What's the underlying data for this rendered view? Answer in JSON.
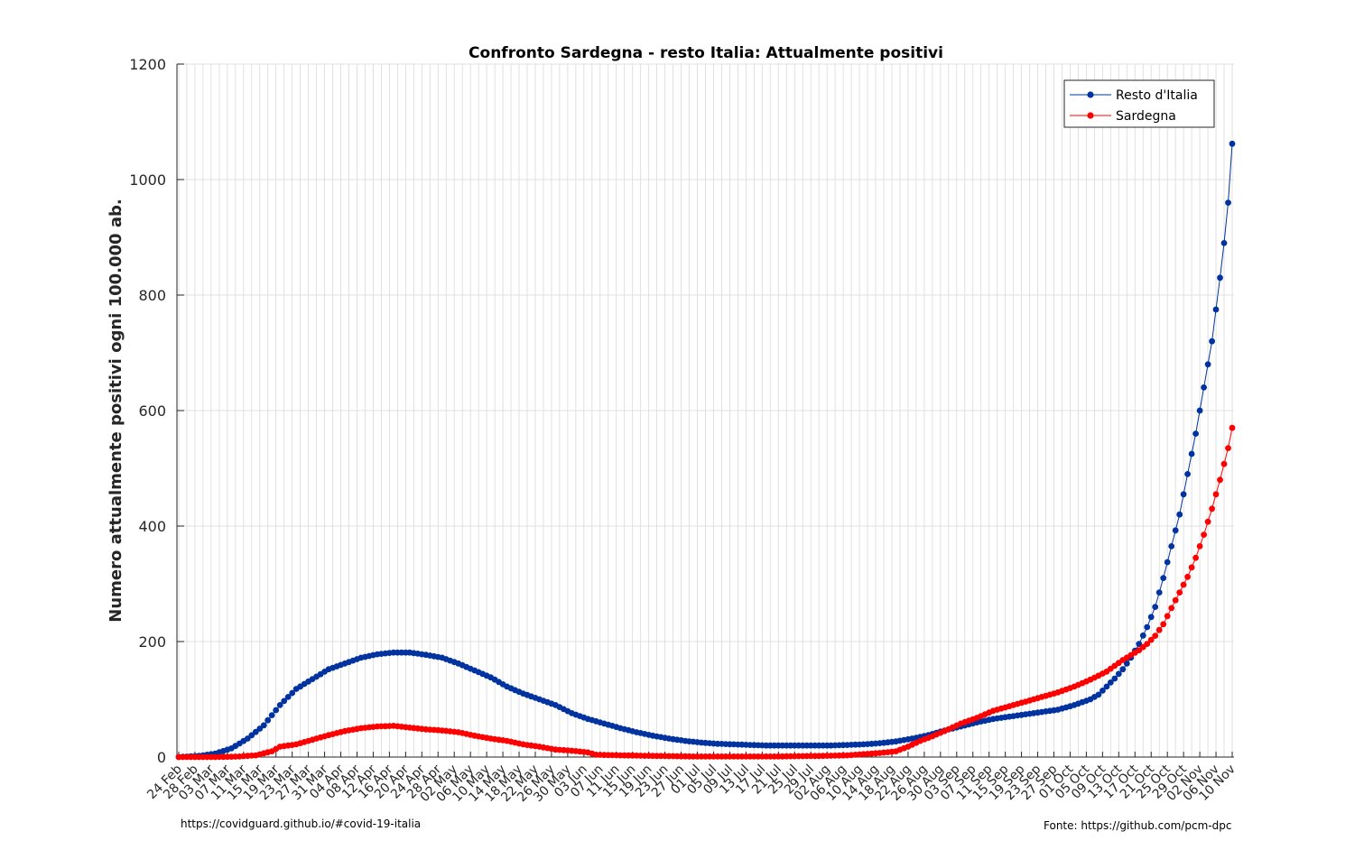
{
  "chart_data": {
    "type": "line",
    "title": "Confronto Sardegna - resto Italia: Attualmente positivi",
    "xlabel": "",
    "ylabel": "Numero attualmente positivi ogni 100.000 ab.",
    "ylim": [
      0,
      1200
    ],
    "yticks": [
      0,
      200,
      400,
      600,
      800,
      1000,
      1200
    ],
    "grid": true,
    "legend_position": "top-right",
    "x_start": "2020-02-24",
    "x_end": "2020-11-10",
    "xtick_labels": [
      "24 Feb",
      "28 Feb",
      "03 Mar",
      "07 Mar",
      "11 Mar",
      "15 Mar",
      "19 Mar",
      "23 Mar",
      "27 Mar",
      "31 Mar",
      "04 Apr",
      "08 Apr",
      "12 Apr",
      "16 Apr",
      "20 Apr",
      "24 Apr",
      "28 Apr",
      "02 May",
      "06 May",
      "10 May",
      "14 May",
      "18 May",
      "22 May",
      "26 May",
      "30 May",
      "03 Jun",
      "07 Jun",
      "11 Jun",
      "15 Jun",
      "19 Jun",
      "23 Jun",
      "27 Jun",
      "01 Jul",
      "05 Jul",
      "09 Jul",
      "13 Jul",
      "17 Jul",
      "21 Jul",
      "25 Jul",
      "29 Jul",
      "02 Aug",
      "06 Aug",
      "10 Aug",
      "14 Aug",
      "18 Aug",
      "22 Aug",
      "26 Aug",
      "30 Aug",
      "03 Sep",
      "07 Sep",
      "11 Sep",
      "15 Sep",
      "19 Sep",
      "23 Sep",
      "27 Sep",
      "01 Oct",
      "05 Oct",
      "09 Oct",
      "13 Oct",
      "17 Oct",
      "21 Oct",
      "25 Oct",
      "29 Oct",
      "02 Nov",
      "06 Nov",
      "10 Nov"
    ],
    "series": [
      {
        "name": "Resto d'Italia",
        "color": "#0033a0",
        "anchors": [
          [
            "2020-02-24",
            0
          ],
          [
            "2020-02-29",
            2
          ],
          [
            "2020-03-04",
            6
          ],
          [
            "2020-03-08",
            15
          ],
          [
            "2020-03-12",
            32
          ],
          [
            "2020-03-16",
            55
          ],
          [
            "2020-03-20",
            90
          ],
          [
            "2020-03-24",
            118
          ],
          [
            "2020-03-28",
            135
          ],
          [
            "2020-04-01",
            152
          ],
          [
            "2020-04-05",
            162
          ],
          [
            "2020-04-09",
            172
          ],
          [
            "2020-04-13",
            178
          ],
          [
            "2020-04-17",
            181
          ],
          [
            "2020-04-21",
            181
          ],
          [
            "2020-04-25",
            177
          ],
          [
            "2020-04-29",
            172
          ],
          [
            "2020-05-03",
            162
          ],
          [
            "2020-05-07",
            150
          ],
          [
            "2020-05-11",
            138
          ],
          [
            "2020-05-15",
            122
          ],
          [
            "2020-05-19",
            110
          ],
          [
            "2020-05-23",
            100
          ],
          [
            "2020-05-27",
            90
          ],
          [
            "2020-05-31",
            76
          ],
          [
            "2020-06-04",
            66
          ],
          [
            "2020-06-08",
            58
          ],
          [
            "2020-06-12",
            50
          ],
          [
            "2020-06-16",
            43
          ],
          [
            "2020-06-20",
            37
          ],
          [
            "2020-06-24",
            32
          ],
          [
            "2020-06-28",
            28
          ],
          [
            "2020-07-02",
            25
          ],
          [
            "2020-07-06",
            23
          ],
          [
            "2020-07-10",
            22
          ],
          [
            "2020-07-14",
            21
          ],
          [
            "2020-07-18",
            20
          ],
          [
            "2020-07-22",
            20
          ],
          [
            "2020-07-26",
            20
          ],
          [
            "2020-07-30",
            20
          ],
          [
            "2020-08-03",
            20
          ],
          [
            "2020-08-07",
            21
          ],
          [
            "2020-08-11",
            22
          ],
          [
            "2020-08-15",
            24
          ],
          [
            "2020-08-19",
            27
          ],
          [
            "2020-08-23",
            32
          ],
          [
            "2020-08-27",
            38
          ],
          [
            "2020-08-31",
            46
          ],
          [
            "2020-09-04",
            53
          ],
          [
            "2020-09-08",
            60
          ],
          [
            "2020-09-12",
            66
          ],
          [
            "2020-09-16",
            70
          ],
          [
            "2020-09-20",
            74
          ],
          [
            "2020-09-24",
            78
          ],
          [
            "2020-09-28",
            82
          ],
          [
            "2020-10-02",
            90
          ],
          [
            "2020-10-06",
            100
          ],
          [
            "2020-10-08",
            108
          ],
          [
            "2020-10-10",
            122
          ],
          [
            "2020-10-12",
            136
          ],
          [
            "2020-10-14",
            152
          ],
          [
            "2020-10-16",
            172
          ],
          [
            "2020-10-18",
            196
          ],
          [
            "2020-10-20",
            225
          ],
          [
            "2020-10-22",
            260
          ],
          [
            "2020-10-24",
            310
          ],
          [
            "2020-10-26",
            365
          ],
          [
            "2020-10-28",
            420
          ],
          [
            "2020-10-30",
            490
          ],
          [
            "2020-11-01",
            560
          ],
          [
            "2020-11-03",
            640
          ],
          [
            "2020-11-05",
            720
          ],
          [
            "2020-11-07",
            830
          ],
          [
            "2020-11-08",
            890
          ],
          [
            "2020-11-09",
            960
          ],
          [
            "2020-11-10",
            1062
          ]
        ]
      },
      {
        "name": "Sardegna",
        "color": "#ff0000",
        "anchors": [
          [
            "2020-02-24",
            0
          ],
          [
            "2020-03-04",
            0
          ],
          [
            "2020-03-10",
            1
          ],
          [
            "2020-03-14",
            3
          ],
          [
            "2020-03-18",
            10
          ],
          [
            "2020-03-20",
            18
          ],
          [
            "2020-03-24",
            22
          ],
          [
            "2020-03-28",
            30
          ],
          [
            "2020-04-01",
            38
          ],
          [
            "2020-04-05",
            45
          ],
          [
            "2020-04-09",
            50
          ],
          [
            "2020-04-13",
            53
          ],
          [
            "2020-04-17",
            54
          ],
          [
            "2020-04-21",
            51
          ],
          [
            "2020-04-25",
            48
          ],
          [
            "2020-04-29",
            46
          ],
          [
            "2020-05-03",
            43
          ],
          [
            "2020-05-07",
            37
          ],
          [
            "2020-05-11",
            32
          ],
          [
            "2020-05-15",
            28
          ],
          [
            "2020-05-19",
            22
          ],
          [
            "2020-05-23",
            18
          ],
          [
            "2020-05-27",
            13
          ],
          [
            "2020-05-31",
            11
          ],
          [
            "2020-06-04",
            8
          ],
          [
            "2020-06-06",
            4
          ],
          [
            "2020-06-12",
            3
          ],
          [
            "2020-06-20",
            2
          ],
          [
            "2020-06-30",
            1
          ],
          [
            "2020-07-20",
            1
          ],
          [
            "2020-08-01",
            2
          ],
          [
            "2020-08-07",
            3
          ],
          [
            "2020-08-11",
            5
          ],
          [
            "2020-08-15",
            7
          ],
          [
            "2020-08-19",
            10
          ],
          [
            "2020-08-22",
            18
          ],
          [
            "2020-08-25",
            28
          ],
          [
            "2020-08-28",
            36
          ],
          [
            "2020-08-31",
            45
          ],
          [
            "2020-09-04",
            58
          ],
          [
            "2020-09-08",
            68
          ],
          [
            "2020-09-12",
            80
          ],
          [
            "2020-09-16",
            88
          ],
          [
            "2020-09-20",
            96
          ],
          [
            "2020-09-24",
            104
          ],
          [
            "2020-09-28",
            112
          ],
          [
            "2020-10-02",
            122
          ],
          [
            "2020-10-06",
            134
          ],
          [
            "2020-10-10",
            148
          ],
          [
            "2020-10-14",
            168
          ],
          [
            "2020-10-18",
            185
          ],
          [
            "2020-10-20",
            196
          ],
          [
            "2020-10-22",
            210
          ],
          [
            "2020-10-24",
            230
          ],
          [
            "2020-10-26",
            258
          ],
          [
            "2020-10-28",
            285
          ],
          [
            "2020-10-30",
            312
          ],
          [
            "2020-11-01",
            345
          ],
          [
            "2020-11-03",
            385
          ],
          [
            "2020-11-05",
            430
          ],
          [
            "2020-11-07",
            480
          ],
          [
            "2020-11-09",
            535
          ],
          [
            "2020-11-10",
            570
          ]
        ]
      }
    ]
  },
  "footer": {
    "left": "https://covidguard.github.io/#covid-19-italia",
    "right": "Fonte: https://github.com/pcm-dpc"
  }
}
